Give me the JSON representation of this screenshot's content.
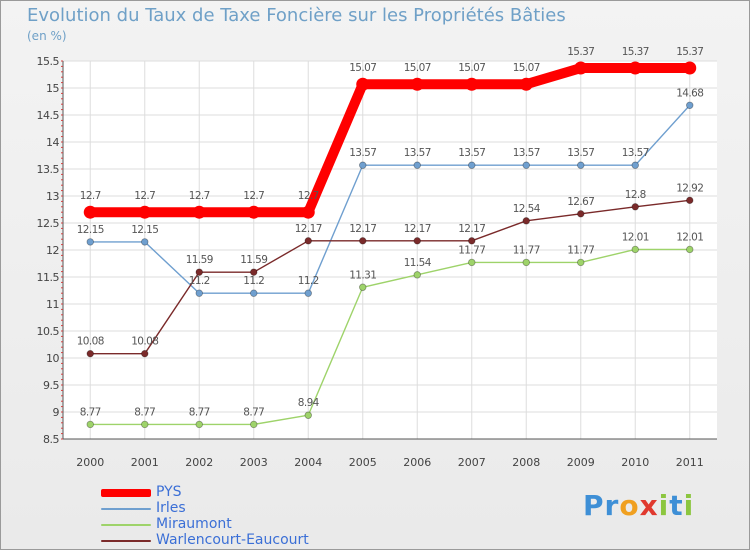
{
  "title": "Evolution du Taux de Taxe Foncière sur les Propriétés Bâties",
  "unit_label": "(en %)",
  "logo": {
    "text": "Proxiti",
    "letters": [
      "P",
      "r",
      "o",
      "x",
      "i",
      "t",
      "i"
    ],
    "colors": [
      "#3e8fd6",
      "#3e8fd6",
      "#f0a020",
      "#e0392e",
      "#8cc63f",
      "#3e8fd6",
      "#8cc63f"
    ]
  },
  "chart_data": {
    "type": "line",
    "title": "Evolution du Taux de Taxe Foncière sur les Propriétés Bâties",
    "ylabel": "(en %)",
    "xlabel": "",
    "x": [
      "2000",
      "2001",
      "2002",
      "2003",
      "2004",
      "2005",
      "2006",
      "2007",
      "2008",
      "2009",
      "2010",
      "2011"
    ],
    "ylim": [
      8.5,
      15.5
    ],
    "yticks": [
      "8.5",
      "9",
      "9.5",
      "10",
      "10.5",
      "11",
      "11.5",
      "12",
      "12.5",
      "13",
      "13.5",
      "14",
      "14.5",
      "15",
      "15.5"
    ],
    "grid": true,
    "legend_position": "bottom-left",
    "series": [
      {
        "name": "PYS",
        "color": "#ff0000",
        "values": [
          12.7,
          12.7,
          12.7,
          12.7,
          12.7,
          15.07,
          15.07,
          15.07,
          15.07,
          15.37,
          15.37,
          15.37
        ],
        "labels": [
          "12.7",
          "12.7",
          "12.7",
          "12.7",
          "12.7",
          "15.07",
          "15.07",
          "15.07",
          "15.07",
          "15.37",
          "15.37",
          "15.37"
        ]
      },
      {
        "name": "Irles",
        "color": "#6f9fcf",
        "values": [
          12.15,
          12.15,
          11.2,
          11.2,
          11.2,
          13.57,
          13.57,
          13.57,
          13.57,
          13.57,
          13.57,
          14.68
        ],
        "labels": [
          "12.15",
          "12.15",
          "11.2",
          "11.2",
          "11.2",
          "13.57",
          "13.57",
          "13.57",
          "13.57",
          "13.57",
          "13.57",
          "14.68"
        ]
      },
      {
        "name": "Miraumont",
        "color": "#9ed36a",
        "values": [
          8.77,
          8.77,
          8.77,
          8.77,
          8.94,
          11.31,
          11.54,
          11.77,
          11.77,
          11.77,
          12.01,
          12.01
        ],
        "labels": [
          "8.77",
          "8.77",
          "8.77",
          "8.77",
          "8.94",
          "11.31",
          "11.54",
          "11.77",
          "11.77",
          "11.77",
          "12.01",
          "12.01"
        ]
      },
      {
        "name": "Warlencourt-Eaucourt",
        "color": "#7a2a2a",
        "values": [
          10.08,
          10.08,
          11.59,
          11.59,
          12.17,
          12.17,
          12.17,
          12.17,
          12.54,
          12.67,
          12.8,
          12.92
        ],
        "labels": [
          "10.08",
          "10.08",
          "11.59",
          "11.59",
          "12.17",
          "12.17",
          "12.17",
          "12.17",
          "12.54",
          "12.67",
          "12.8",
          "12.92"
        ]
      }
    ]
  }
}
